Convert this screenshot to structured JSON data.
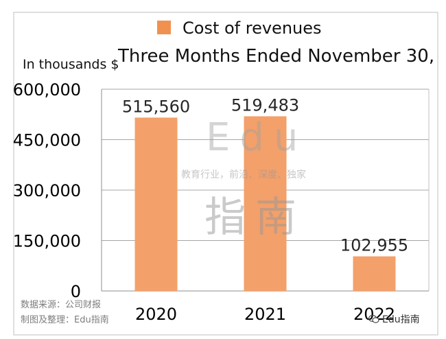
{
  "chart_data": {
    "type": "bar",
    "legend": [
      "Cost of revenues"
    ],
    "subtitle": "Three Months Ended November 30,",
    "ylabel": "In thousands $",
    "categories": [
      "2020",
      "2021",
      "2022"
    ],
    "series": [
      {
        "name": "Cost of revenues",
        "values": [
          515560,
          519483,
          102955
        ]
      }
    ],
    "data_labels": [
      "515,560",
      "519,483",
      "102,955"
    ],
    "yticks": [
      "0",
      "150,000",
      "300,000",
      "450,000",
      "600,000"
    ],
    "ylim": [
      0,
      600000
    ],
    "grid": true,
    "legend_position": "top",
    "bar_color": "#f4a06a",
    "legend_color": "#f0914f"
  },
  "watermark": {
    "brand": "Edu",
    "tagline": "教育行业，前沿、深度、独家",
    "cn": "指南"
  },
  "source": {
    "line1": "数据来源：公司财报",
    "line2": "制图及整理：Edu指南"
  },
  "wechat_label": "Edu指南"
}
